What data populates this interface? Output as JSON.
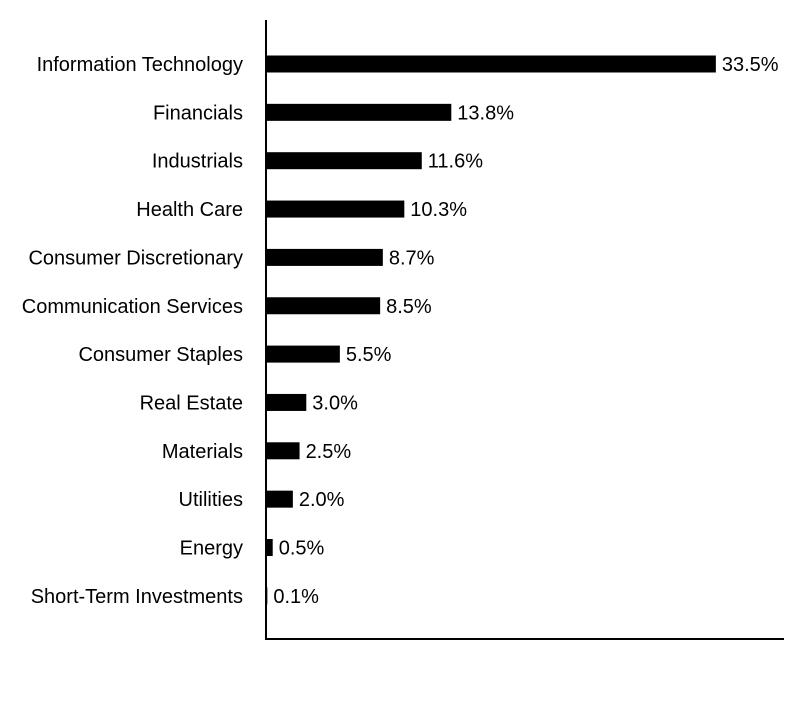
{
  "chart_data": {
    "type": "bar",
    "orientation": "horizontal",
    "title": "",
    "xlabel": "",
    "ylabel": "",
    "categories": [
      "Information Technology",
      "Financials",
      "Industrials",
      "Health Care",
      "Consumer Discretionary",
      "Communication Services",
      "Consumer Staples",
      "Real Estate",
      "Materials",
      "Utilities",
      "Energy",
      "Short-Term Investments"
    ],
    "values": [
      33.5,
      13.8,
      11.6,
      10.3,
      8.7,
      8.5,
      5.5,
      3.0,
      2.5,
      2.0,
      0.5,
      0.1
    ],
    "value_labels": [
      "33.5%",
      "13.8%",
      "11.6%",
      "10.3%",
      "8.7%",
      "8.5%",
      "5.5%",
      "3.0%",
      "2.5%",
      "2.0%",
      "0.5%",
      "0.1%"
    ],
    "xlim": [
      0,
      38.5
    ],
    "grid": false,
    "legend": "none",
    "bar_color": "#000000"
  }
}
